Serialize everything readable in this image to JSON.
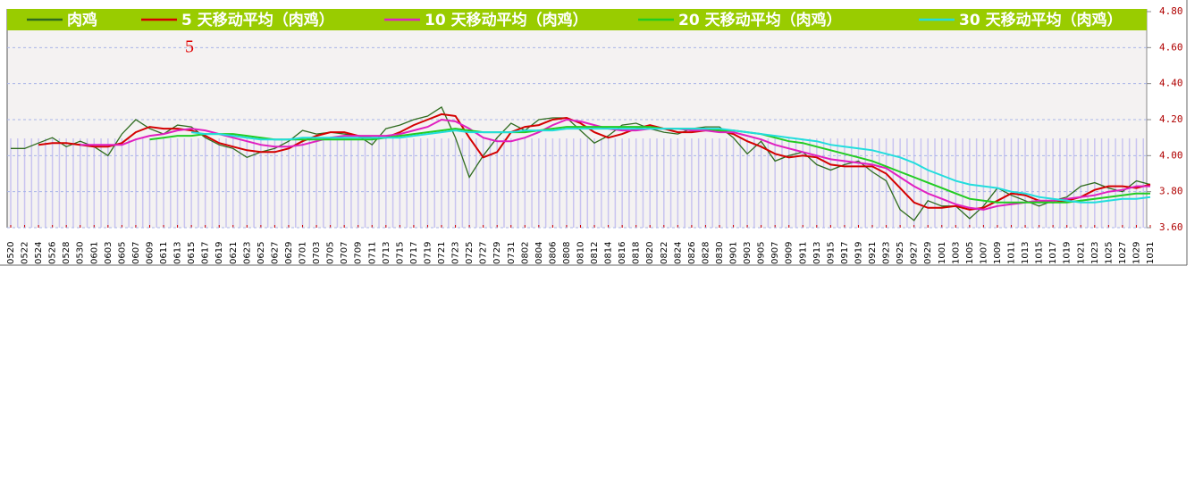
{
  "chart_data": {
    "type": "line",
    "annotation": "5",
    "categories": [
      "0520",
      "0522",
      "0524",
      "0526",
      "0528",
      "0530",
      "0601",
      "0603",
      "0605",
      "0607",
      "0609",
      "0611",
      "0613",
      "0615",
      "0617",
      "0619",
      "0621",
      "0623",
      "0625",
      "0627",
      "0629",
      "0701",
      "0703",
      "0705",
      "0707",
      "0709",
      "0711",
      "0713",
      "0715",
      "0717",
      "0719",
      "0721",
      "0723",
      "0725",
      "0727",
      "0729",
      "0731",
      "0802",
      "0804",
      "0806",
      "0808",
      "0810",
      "0812",
      "0814",
      "0816",
      "0818",
      "0820",
      "0822",
      "0824",
      "0826",
      "0828",
      "0830",
      "0901",
      "0903",
      "0905",
      "0907",
      "0909",
      "0911",
      "0913",
      "0915",
      "0917",
      "0919",
      "0921",
      "0923",
      "0925",
      "0927",
      "0929",
      "1001",
      "1003",
      "1005",
      "1007",
      "1009",
      "1011",
      "1013",
      "1015",
      "1017",
      "1019",
      "1021",
      "1023",
      "1025",
      "1027",
      "1029",
      "1031"
    ],
    "series": [
      {
        "name": "肉鸡",
        "color": "#2f6b1f",
        "values": [
          4.04,
          4.04,
          4.07,
          4.1,
          4.05,
          4.08,
          4.05,
          4.0,
          4.12,
          4.2,
          4.15,
          4.12,
          4.17,
          4.16,
          4.1,
          4.06,
          4.04,
          3.99,
          4.02,
          4.04,
          4.08,
          4.14,
          4.12,
          4.13,
          4.12,
          4.11,
          4.06,
          4.15,
          4.17,
          4.2,
          4.22,
          4.27,
          4.1,
          3.88,
          4.0,
          4.1,
          4.18,
          4.14,
          4.2,
          4.21,
          4.21,
          4.14,
          4.07,
          4.11,
          4.17,
          4.18,
          4.15,
          4.13,
          4.12,
          4.15,
          4.16,
          4.16,
          4.1,
          4.01,
          4.08,
          3.97,
          4.0,
          4.02,
          3.95,
          3.92,
          3.95,
          3.97,
          3.91,
          3.86,
          3.7,
          3.64,
          3.75,
          3.72,
          3.72,
          3.65,
          3.72,
          3.82,
          3.78,
          3.75,
          3.72,
          3.75,
          3.77,
          3.83,
          3.85,
          3.82,
          3.8,
          3.86,
          3.84
        ]
      },
      {
        "name": "5 天移动平均（肉鸡）",
        "color": "#d40000",
        "values": [
          null,
          null,
          4.06,
          4.07,
          4.07,
          4.06,
          4.05,
          4.05,
          4.07,
          4.13,
          4.16,
          4.15,
          4.15,
          4.14,
          4.11,
          4.07,
          4.05,
          4.03,
          4.02,
          4.02,
          4.04,
          4.08,
          4.11,
          4.13,
          4.13,
          4.11,
          4.1,
          4.1,
          4.13,
          4.17,
          4.2,
          4.23,
          4.22,
          4.1,
          3.99,
          4.02,
          4.13,
          4.16,
          4.17,
          4.2,
          4.21,
          4.18,
          4.13,
          4.1,
          4.12,
          4.15,
          4.17,
          4.15,
          4.13,
          4.13,
          4.14,
          4.14,
          4.12,
          4.08,
          4.05,
          4.01,
          3.99,
          4.0,
          3.99,
          3.95,
          3.94,
          3.94,
          3.94,
          3.9,
          3.82,
          3.74,
          3.71,
          3.71,
          3.72,
          3.7,
          3.71,
          3.75,
          3.79,
          3.78,
          3.75,
          3.74,
          3.75,
          3.77,
          3.81,
          3.83,
          3.83,
          3.82,
          3.84
        ]
      },
      {
        "name": "10 天移动平均（肉鸡）",
        "color": "#e020c0",
        "values": [
          null,
          null,
          null,
          null,
          null,
          4.06,
          4.06,
          4.06,
          4.06,
          4.09,
          4.11,
          4.12,
          4.14,
          4.15,
          4.14,
          4.12,
          4.1,
          4.08,
          4.06,
          4.05,
          4.05,
          4.06,
          4.08,
          4.1,
          4.11,
          4.11,
          4.11,
          4.11,
          4.12,
          4.14,
          4.16,
          4.2,
          4.19,
          4.15,
          4.1,
          4.08,
          4.08,
          4.1,
          4.13,
          4.17,
          4.2,
          4.19,
          4.17,
          4.15,
          4.14,
          4.14,
          4.15,
          4.15,
          4.15,
          4.14,
          4.14,
          4.13,
          4.13,
          4.11,
          4.09,
          4.06,
          4.04,
          4.02,
          4.0,
          3.98,
          3.97,
          3.96,
          3.95,
          3.93,
          3.88,
          3.83,
          3.79,
          3.76,
          3.73,
          3.71,
          3.7,
          3.72,
          3.73,
          3.74,
          3.75,
          3.75,
          3.76,
          3.77,
          3.78,
          3.8,
          3.81,
          3.83,
          3.83
        ]
      },
      {
        "name": "20 天移动平均（肉鸡）",
        "color": "#22cc22",
        "values": [
          null,
          null,
          null,
          null,
          null,
          null,
          null,
          null,
          null,
          null,
          4.09,
          4.1,
          4.11,
          4.11,
          4.12,
          4.12,
          4.12,
          4.11,
          4.1,
          4.09,
          4.09,
          4.09,
          4.09,
          4.09,
          4.09,
          4.09,
          4.09,
          4.1,
          4.11,
          4.12,
          4.13,
          4.14,
          4.15,
          4.14,
          4.13,
          4.13,
          4.13,
          4.13,
          4.14,
          4.15,
          4.16,
          4.16,
          4.16,
          4.16,
          4.16,
          4.16,
          4.16,
          4.15,
          4.15,
          4.15,
          4.15,
          4.14,
          4.14,
          4.13,
          4.12,
          4.1,
          4.08,
          4.07,
          4.05,
          4.03,
          4.01,
          3.99,
          3.97,
          3.94,
          3.91,
          3.88,
          3.85,
          3.82,
          3.79,
          3.76,
          3.75,
          3.74,
          3.74,
          3.74,
          3.74,
          3.74,
          3.74,
          3.75,
          3.76,
          3.77,
          3.78,
          3.79,
          3.79
        ]
      },
      {
        "name": "30 天移动平均（肉鸡）",
        "color": "#22dddd",
        "values": [
          null,
          null,
          null,
          null,
          null,
          null,
          null,
          null,
          null,
          null,
          null,
          null,
          null,
          4.13,
          4.12,
          4.12,
          4.11,
          4.1,
          4.09,
          4.09,
          4.09,
          4.1,
          4.1,
          4.1,
          4.1,
          4.1,
          4.1,
          4.1,
          4.1,
          4.11,
          4.12,
          4.13,
          4.14,
          4.13,
          4.13,
          4.13,
          4.13,
          4.14,
          4.14,
          4.14,
          4.15,
          4.15,
          4.15,
          4.15,
          4.15,
          4.15,
          4.15,
          4.15,
          4.15,
          4.15,
          4.15,
          4.15,
          4.14,
          4.13,
          4.12,
          4.11,
          4.1,
          4.09,
          4.08,
          4.06,
          4.05,
          4.04,
          4.03,
          4.01,
          3.99,
          3.96,
          3.92,
          3.89,
          3.86,
          3.84,
          3.83,
          3.82,
          3.8,
          3.79,
          3.77,
          3.76,
          3.75,
          3.74,
          3.74,
          3.75,
          3.76,
          3.76,
          3.77
        ]
      }
    ],
    "ylim": [
      3.6,
      4.8
    ],
    "yticks": [
      {
        "value": 3.6,
        "label": "3.60"
      },
      {
        "value": 3.8,
        "label": "3.80"
      },
      {
        "value": 4.0,
        "label": "4.00"
      },
      {
        "value": 4.2,
        "label": "4.20"
      },
      {
        "value": 4.4,
        "label": "4.40"
      },
      {
        "value": 4.6,
        "label": "4.60"
      },
      {
        "value": 4.8,
        "label": "4.80"
      }
    ],
    "grid": true
  }
}
